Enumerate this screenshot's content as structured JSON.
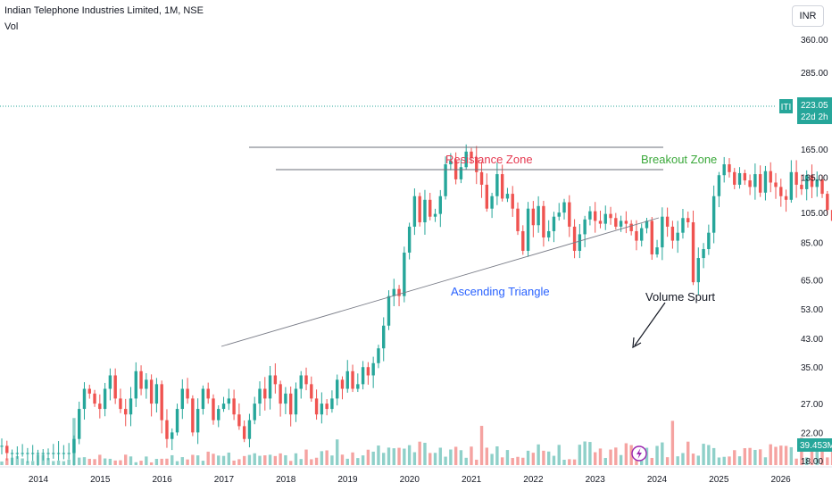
{
  "header": {
    "title": "Indian Telephone Industries Limited, 1M, NSE",
    "volume_label": "Vol",
    "currency": "INR"
  },
  "price_badge": {
    "ticker": "ITI",
    "price": "223.05",
    "countdown": "22d 2h"
  },
  "volume_badge": "39.453M",
  "annotations": {
    "resistance": "Resistance Zone",
    "breakout": "Breakout Zone",
    "triangle": "Ascending Triangle",
    "volume_spurt": "Volume Spurt"
  },
  "colors": {
    "up": "#26a69a",
    "down": "#ef5350",
    "vol_up": "#8fd0c9",
    "vol_down": "#f5a3a1",
    "resistance_text": "#e53950",
    "breakout_text": "#3aa83a",
    "triangle_text": "#2962ff"
  },
  "chart_data": {
    "type": "candlestick",
    "title": "Indian Telephone Industries Limited, 1M, NSE",
    "y_scale": "log",
    "y_ticks": [
      360,
      285,
      223.05,
      165,
      135,
      105,
      85,
      65,
      53,
      43,
      35,
      27,
      22,
      18
    ],
    "x_ticks": [
      "2014",
      "2015",
      "2016",
      "2017",
      "2018",
      "2019",
      "2020",
      "2021",
      "2022",
      "2023",
      "2024",
      "2025",
      "2026"
    ],
    "last_price": 223.05,
    "last_volume": "39.453M",
    "resistance_levels": [
      165,
      142
    ],
    "trendline": {
      "from": {
        "date": "2017.0",
        "price": 40
      },
      "to": {
        "date": "2024.2",
        "price": 98
      }
    },
    "monthly_closes": [
      20,
      19,
      19,
      19,
      19,
      19,
      19,
      19,
      19,
      19,
      19,
      19,
      19,
      19,
      21,
      26,
      30,
      29,
      27,
      26,
      30,
      33,
      28,
      26,
      25,
      28,
      34,
      30,
      32,
      27,
      31,
      24,
      21,
      22,
      26,
      30,
      28,
      22,
      26,
      30,
      28,
      24,
      26,
      27,
      28,
      25,
      23,
      21,
      24,
      27,
      30,
      28,
      33,
      31,
      27,
      29,
      25,
      30,
      33,
      31,
      28,
      25,
      27,
      26,
      28,
      32,
      30,
      34,
      30,
      31,
      35,
      33,
      36,
      40,
      47,
      58,
      61,
      58,
      79,
      95,
      118,
      98,
      115,
      102,
      104,
      118,
      148,
      152,
      133,
      145,
      162,
      155,
      140,
      128,
      108,
      118,
      138,
      116,
      120,
      108,
      92,
      80,
      108,
      96,
      110,
      88,
      92,
      102,
      105,
      113,
      95,
      80,
      90,
      100,
      106,
      99,
      97,
      104,
      101,
      95,
      99,
      97,
      92,
      86,
      94,
      99,
      78,
      82,
      102,
      95,
      86,
      91,
      101,
      98,
      64,
      76,
      81,
      91,
      118,
      137,
      148,
      140,
      128,
      139,
      132,
      126,
      138,
      121,
      141,
      130,
      126,
      118,
      115,
      140,
      128,
      124,
      137,
      126,
      133,
      120,
      107,
      99,
      95,
      101,
      118,
      132,
      125,
      112,
      96,
      95,
      117,
      118,
      124,
      112,
      95,
      108,
      123,
      108,
      103,
      104,
      109,
      113,
      97,
      100,
      100,
      110,
      163,
      223
    ],
    "events_volume_spikes": [
      {
        "date": "2023-09",
        "volume": "39.453M"
      }
    ]
  }
}
